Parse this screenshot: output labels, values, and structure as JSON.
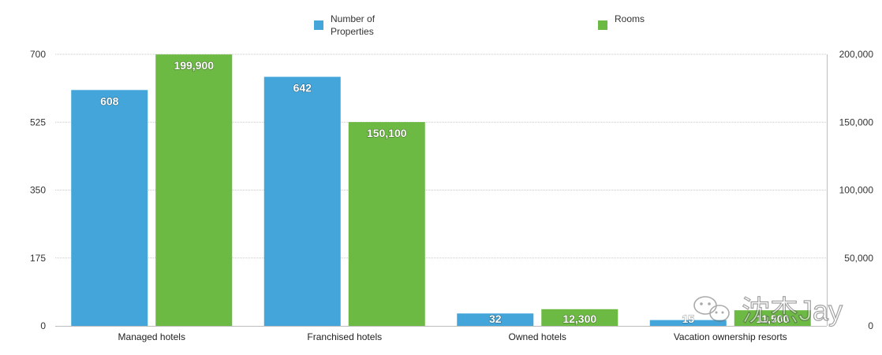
{
  "colors": {
    "properties": "#43a5d9",
    "rooms": "#6cba43",
    "grid": "#c8c8c8",
    "text": "#333333"
  },
  "legend": {
    "placement": "top-center",
    "items": [
      {
        "label_lines": [
          "Number of",
          "Properties"
        ],
        "color": "#43a5d9"
      },
      {
        "label_lines": [
          "Rooms"
        ],
        "color": "#6cba43"
      }
    ]
  },
  "watermark": {
    "text": "沈杰Jay",
    "icon": "wechat-icon"
  },
  "chart_data": {
    "type": "bar",
    "categories": [
      "Managed hotels",
      "Franchised hotels",
      "Owned hotels",
      "Vacation ownership resorts"
    ],
    "series": [
      {
        "name": "Number of Properties",
        "axis": "left",
        "color": "#43a5d9",
        "values": [
          608,
          642,
          32,
          15
        ],
        "labels": [
          "608",
          "642",
          "32",
          "15"
        ]
      },
      {
        "name": "Rooms",
        "axis": "right",
        "color": "#6cba43",
        "values": [
          199900,
          150100,
          12300,
          11500
        ],
        "labels": [
          "199,900",
          "150,100",
          "12,300",
          "11,500"
        ]
      }
    ],
    "y_left": {
      "ylim": [
        0,
        700
      ],
      "ticks": [
        0,
        175,
        350,
        525,
        700
      ],
      "tick_labels": [
        "0",
        "175",
        "350",
        "525",
        "700"
      ]
    },
    "y_right": {
      "ylim": [
        0,
        200000
      ],
      "ticks": [
        0,
        50000,
        100000,
        150000,
        200000
      ],
      "tick_labels": [
        "0",
        "50,000",
        "100,000",
        "150,000",
        "200,000"
      ]
    },
    "grid": true,
    "title": "",
    "xlabel": "",
    "ylabel": ""
  }
}
